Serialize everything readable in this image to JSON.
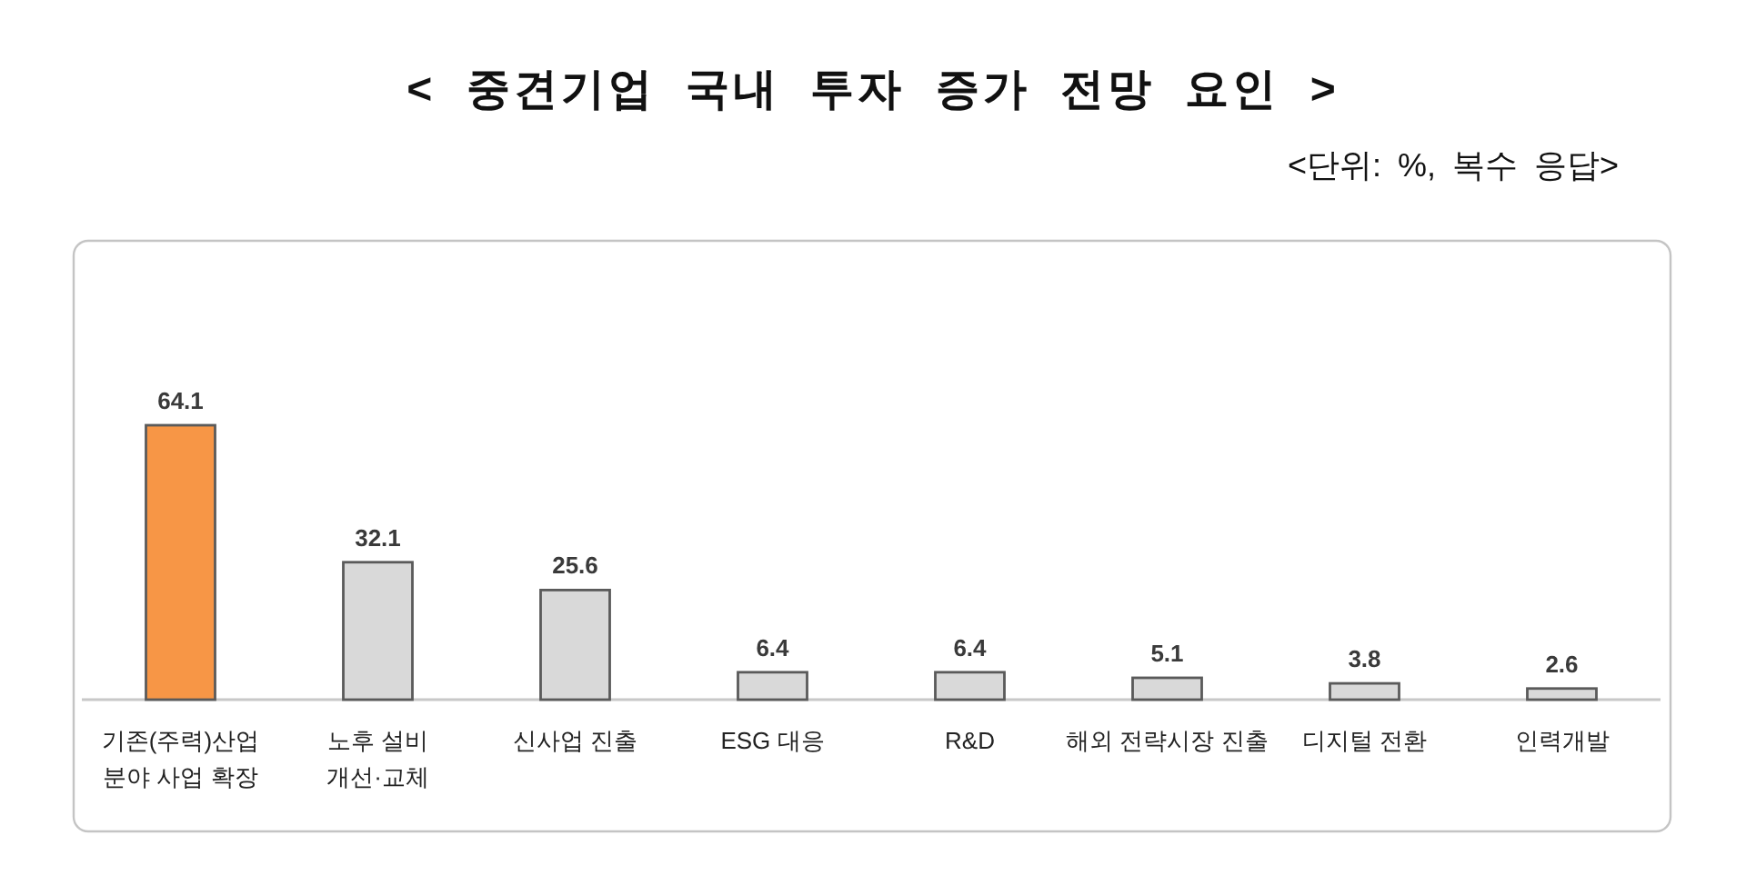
{
  "chart_data": {
    "type": "bar",
    "title": "< 중견기업 국내 투자 증가 전망 요인 >",
    "subtitle": "<단위: %, 복수 응답>",
    "categories": [
      "기존(주력)산업 분야 사업 확장",
      "노후 설비 개선·교체",
      "신사업 진출",
      "ESG 대응",
      "R&D",
      "해외 전략시장 진출",
      "디지털 전환",
      "인력개발"
    ],
    "values": [
      64.1,
      32.1,
      25.6,
      6.4,
      6.4,
      5.1,
      3.8,
      2.6
    ],
    "colors": [
      "#f79646",
      "#d9d9d9",
      "#d9d9d9",
      "#d9d9d9",
      "#d9d9d9",
      "#d9d9d9",
      "#d9d9d9",
      "#d9d9d9"
    ],
    "data_labels": true
  }
}
